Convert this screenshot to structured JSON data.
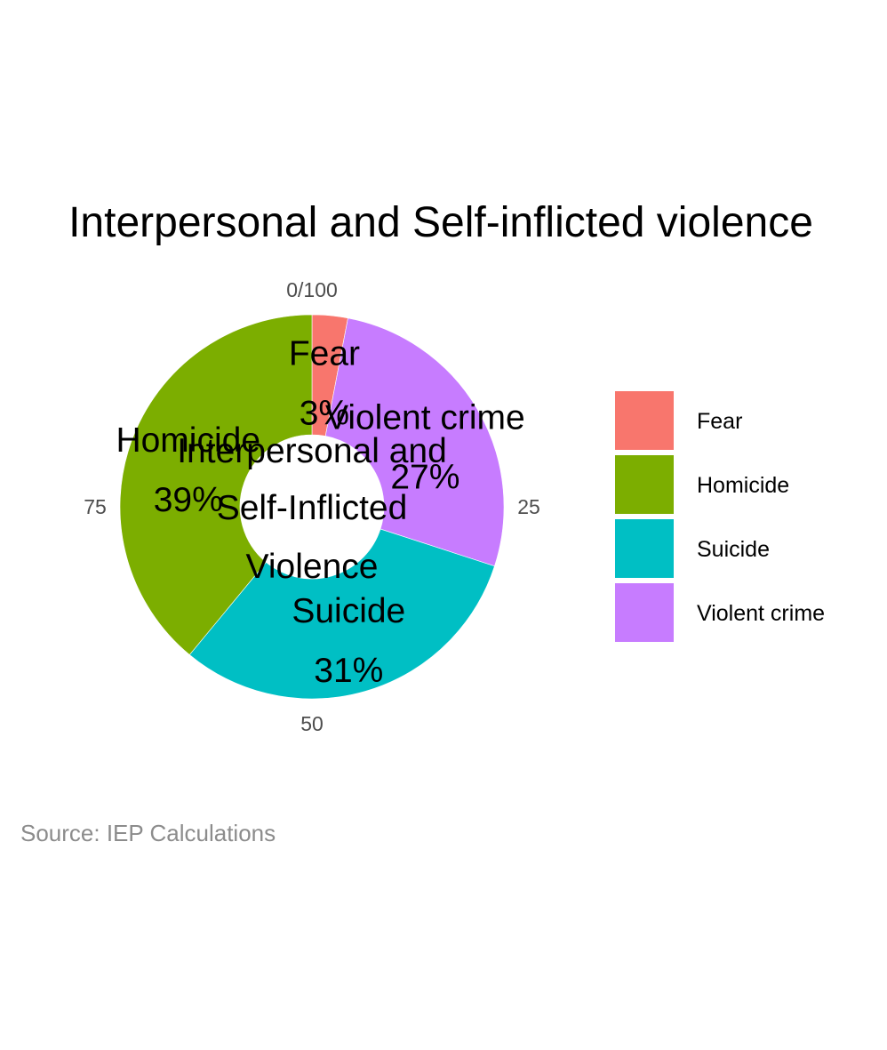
{
  "chart_data": {
    "type": "pie",
    "donut": true,
    "title": "Interpersonal and Self-inflicted violence",
    "center_label_lines": [
      "Interpersonal and",
      "Self-Inflicted",
      "Violence"
    ],
    "caption": "Source: IEP Calculations",
    "slices": [
      {
        "name": "Fear",
        "value": 3,
        "label": "3%",
        "color": "#F8766D"
      },
      {
        "name": "Violent crime",
        "value": 27,
        "label": "27%",
        "color": "#C77CFF"
      },
      {
        "name": "Suicide",
        "value": 31,
        "label": "31%",
        "color": "#00BFC4"
      },
      {
        "name": "Homicide",
        "value": 39,
        "label": "39%",
        "color": "#7CAE00"
      }
    ],
    "axis_ticks": [
      {
        "value": 0,
        "label": "0/100"
      },
      {
        "value": 25,
        "label": "25"
      },
      {
        "value": 50,
        "label": "50"
      },
      {
        "value": 75,
        "label": "75"
      }
    ],
    "axis_range": [
      0,
      100
    ],
    "legend": {
      "position": "right",
      "items": [
        {
          "name": "Fear",
          "color": "#F8766D"
        },
        {
          "name": "Homicide",
          "color": "#7CAE00"
        },
        {
          "name": "Suicide",
          "color": "#00BFC4"
        },
        {
          "name": "Violent crime",
          "color": "#C77CFF"
        }
      ]
    },
    "grid": false
  }
}
